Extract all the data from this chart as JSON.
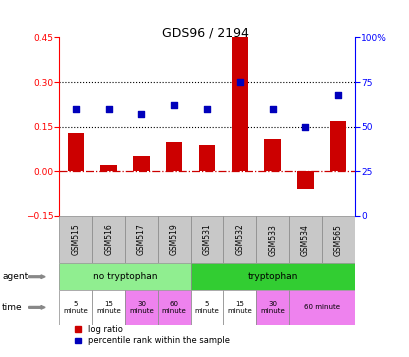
{
  "title": "GDS96 / 2194",
  "samples": [
    "GSM515",
    "GSM516",
    "GSM517",
    "GSM519",
    "GSM531",
    "GSM532",
    "GSM533",
    "GSM534",
    "GSM565"
  ],
  "log_ratio": [
    0.13,
    0.02,
    0.05,
    0.1,
    0.09,
    0.45,
    0.11,
    -0.06,
    0.17
  ],
  "percentile_pct": [
    60,
    60,
    57,
    62,
    60,
    75,
    60,
    50,
    68
  ],
  "ylim_left": [
    -0.15,
    0.45
  ],
  "ylim_right": [
    0,
    100
  ],
  "yticks_left": [
    -0.15,
    0.0,
    0.15,
    0.3,
    0.45
  ],
  "yticks_right": [
    0,
    25,
    50,
    75,
    100
  ],
  "bar_color": "#CC0000",
  "dot_color": "#0000BB",
  "bg_color": "#ffffff",
  "zero_line_color": "#CC0000",
  "dotted_line_color": "#000000",
  "time_info": [
    [
      0,
      1,
      "5\nminute",
      "#ffffff"
    ],
    [
      1,
      2,
      "15\nminute",
      "#ffffff"
    ],
    [
      2,
      3,
      "30\nminute",
      "#EE82EE"
    ],
    [
      3,
      4,
      "60\nminute",
      "#EE82EE"
    ],
    [
      4,
      5,
      "5\nminute",
      "#ffffff"
    ],
    [
      5,
      6,
      "15\nminute",
      "#ffffff"
    ],
    [
      6,
      7,
      "30\nminute",
      "#EE82EE"
    ],
    [
      7,
      9,
      "60 minute",
      "#EE82EE"
    ]
  ],
  "agent_no_color": "#90EE90",
  "agent_yes_color": "#32CD32",
  "sample_bg_color": "#C8C8C8"
}
